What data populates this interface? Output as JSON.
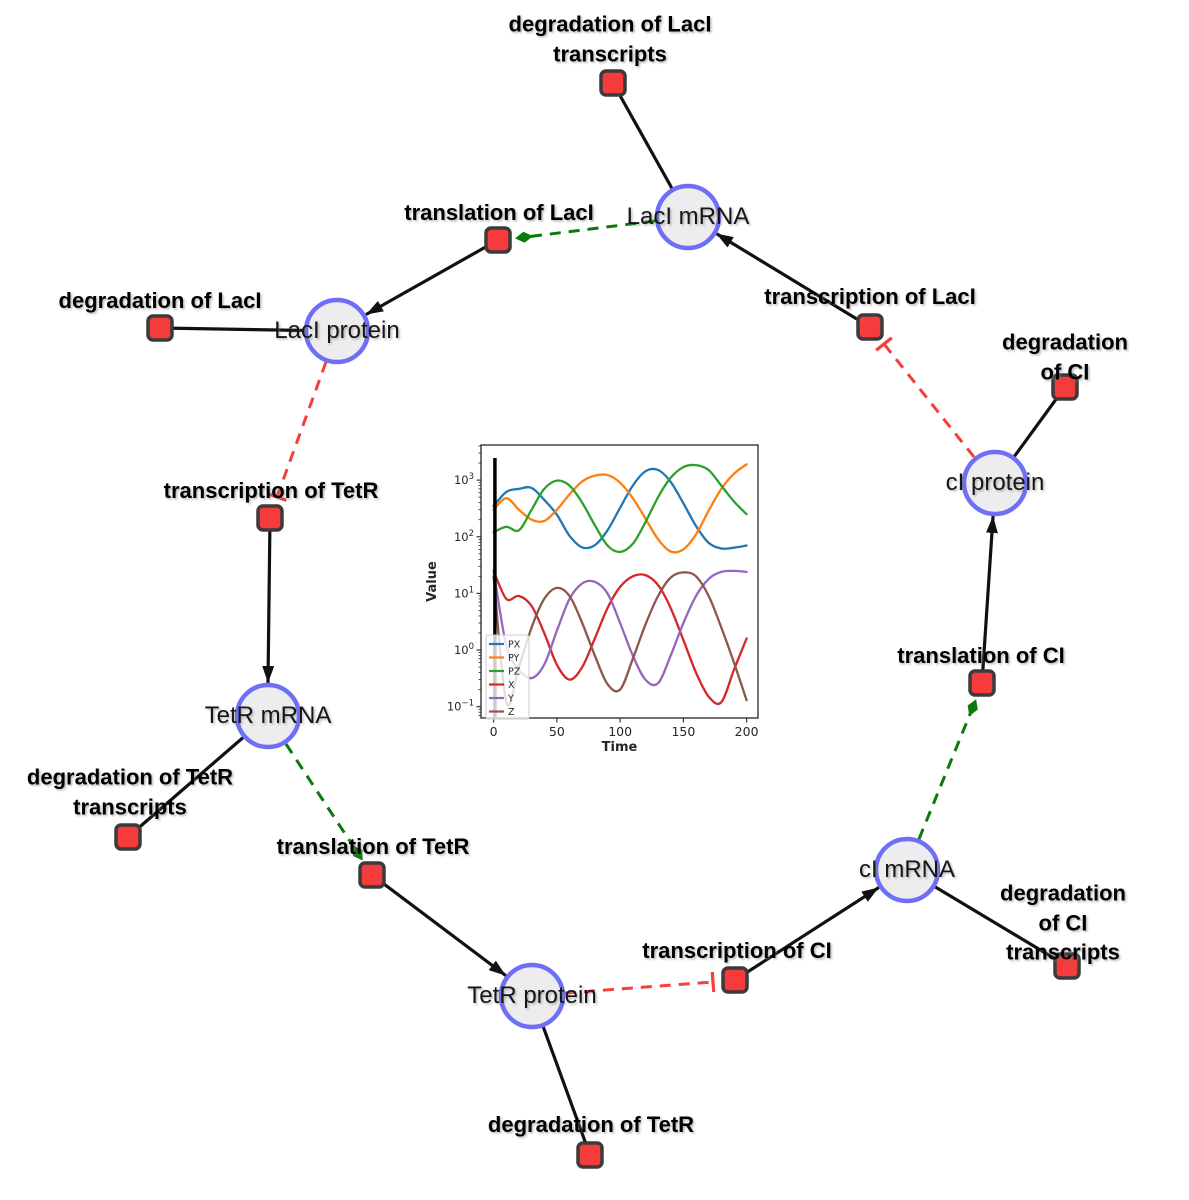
{
  "colors": {
    "species_fill": "#ededf0",
    "species_border": "#6e6ef7",
    "reaction_fill": "#f53b3b",
    "reaction_border": "#3b3b3b",
    "edge_black": "#111111",
    "modifier_green": "#0b7a0b",
    "inhibition_red": "#f3403c"
  },
  "diagram": {
    "species": [
      {
        "label": "LacI mRNA"
      },
      {
        "label": "LacI protein"
      },
      {
        "label": "TetR mRNA"
      },
      {
        "label": "TetR protein"
      },
      {
        "label": "cI mRNA"
      },
      {
        "label": "cI protein"
      }
    ],
    "reactions": [
      {
        "label": "degradation of LacI\ntranscripts"
      },
      {
        "label": "translation of LacI"
      },
      {
        "label": "degradation of LacI"
      },
      {
        "label": "transcription of LacI"
      },
      {
        "label": "degradation of CI"
      },
      {
        "label": "transcription of TetR"
      },
      {
        "label": "degradation of TetR\ntranscripts"
      },
      {
        "label": "translation of TetR"
      },
      {
        "label": "degradation of TetR"
      },
      {
        "label": "transcription of CI"
      },
      {
        "label": "degradation of CI\ntranscripts"
      },
      {
        "label": "translation of CI"
      }
    ]
  },
  "chart_data": {
    "type": "line",
    "title": "",
    "xlabel": "Time",
    "ylabel": "Value",
    "x_ticks": [
      0,
      50,
      100,
      150,
      200
    ],
    "y_scale": "log",
    "y_tick_exponents": [
      -1,
      0,
      1,
      2,
      3
    ],
    "xlim": [
      -10,
      209
    ],
    "ylim_log10": [
      -1.2,
      3.62
    ],
    "grid": false,
    "legend_position": "lower left",
    "vline_x": 1,
    "x": [
      0,
      10,
      20,
      30,
      40,
      50,
      60,
      70,
      80,
      90,
      100,
      110,
      120,
      130,
      140,
      150,
      160,
      170,
      180,
      190,
      200
    ],
    "series": [
      {
        "name": "PX",
        "color": "#1f77b4",
        "values": [
          350,
          620,
          700,
          730,
          450,
          245,
          104,
          65,
          71,
          130,
          325,
          800,
          1430,
          1510,
          930,
          390,
          155,
          78,
          62,
          64,
          70
        ]
      },
      {
        "name": "PY",
        "color": "#ff7f0e",
        "values": [
          300,
          480,
          300,
          200,
          190,
          300,
          560,
          950,
          1200,
          1230,
          900,
          480,
          210,
          90,
          55,
          60,
          110,
          290,
          700,
          1300,
          1900
        ]
      },
      {
        "name": "PZ",
        "color": "#2ca02c",
        "values": [
          120,
          150,
          130,
          300,
          700,
          980,
          800,
          400,
          160,
          70,
          54,
          75,
          180,
          500,
          1100,
          1700,
          1840,
          1500,
          800,
          420,
          250
        ]
      },
      {
        "name": "X",
        "color": "#d62728",
        "values": [
          25,
          8,
          9,
          6,
          2.0,
          0.55,
          0.3,
          0.5,
          1.6,
          5.5,
          13,
          20,
          21,
          14,
          5.5,
          1.5,
          0.4,
          0.15,
          0.12,
          0.45,
          1.6
        ]
      },
      {
        "name": "Y",
        "color": "#9467bd",
        "values": [
          25,
          1.2,
          0.45,
          0.32,
          0.55,
          2.2,
          8,
          15,
          16,
          10,
          3.0,
          0.8,
          0.3,
          0.26,
          0.8,
          3.0,
          9,
          18,
          24,
          25,
          24
        ]
      },
      {
        "name": "Z",
        "color": "#8c564b",
        "values": [
          20,
          0.12,
          0.5,
          2.5,
          8,
          12.5,
          9,
          3.0,
          0.8,
          0.25,
          0.2,
          0.7,
          2.8,
          9,
          19,
          23.5,
          20,
          9,
          2.5,
          0.6,
          0.13
        ]
      }
    ]
  }
}
